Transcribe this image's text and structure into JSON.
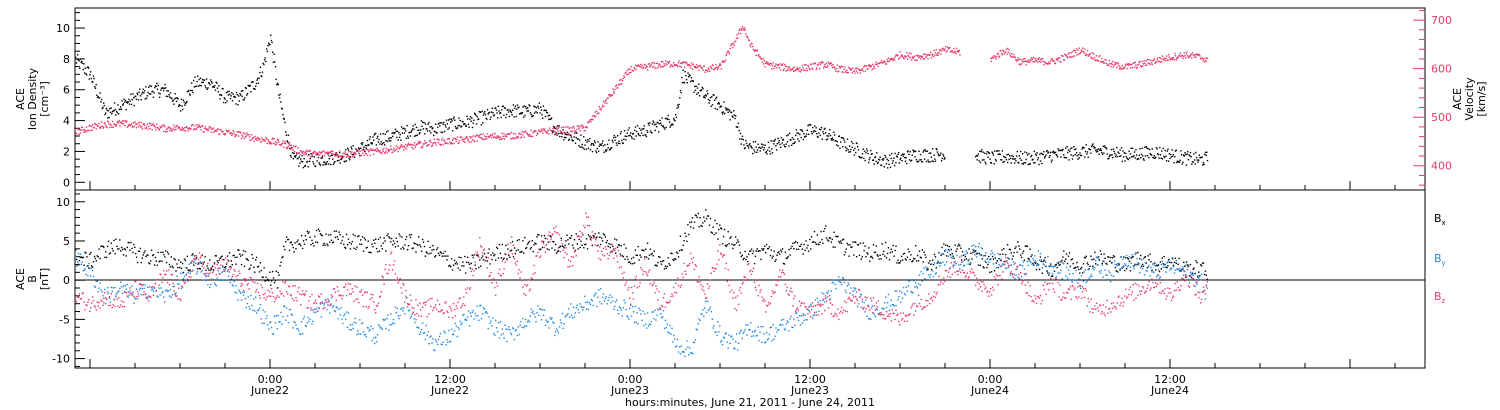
{
  "x_axis": {
    "title": "hours:minutes, June 21, 2011 - June 24, 2011",
    "ticks": [
      {
        "hour": 24,
        "time": "0:00",
        "date": "June22"
      },
      {
        "hour": 36,
        "time": "12:00",
        "date": "June22"
      },
      {
        "hour": 48,
        "time": "0:00",
        "date": "June23"
      },
      {
        "hour": 60,
        "time": "12:00",
        "date": "June23"
      },
      {
        "hour": 72,
        "time": "0:00",
        "date": "June24"
      },
      {
        "hour": 84,
        "time": "12:00",
        "date": "June24"
      }
    ]
  },
  "chart_data": [
    {
      "type": "scatter",
      "xlim": [
        11,
        101
      ],
      "left_axis": {
        "label_lines": [
          "ACE",
          "Ion Density",
          "[cm⁻³]"
        ],
        "ylim": [
          -0.5,
          11.3
        ],
        "ticks": [
          0,
          2,
          4,
          6,
          8,
          10
        ]
      },
      "right_axis": {
        "label_lines": [
          "ACE",
          "Velocity",
          "[km/s]"
        ],
        "ylim": [
          350,
          725
        ],
        "ticks": [
          400,
          500,
          600,
          700
        ]
      },
      "series": [
        {
          "key": "density",
          "axis": "left",
          "color": "#000000",
          "x": [
            11,
            12,
            13,
            14,
            15,
            16,
            17,
            18,
            19,
            20,
            21,
            22,
            23,
            23.5,
            24,
            24.5,
            25,
            25.5,
            26,
            27,
            28,
            29,
            30,
            31,
            32,
            33,
            34,
            35,
            36,
            37,
            38,
            39,
            40,
            41,
            42,
            43,
            44,
            44.5,
            45,
            46,
            47,
            48,
            49,
            50,
            51,
            51.5,
            52,
            53,
            54,
            55,
            55.5,
            56,
            57,
            58,
            59,
            60,
            61,
            62,
            63,
            64,
            65,
            66,
            67,
            68,
            69,
            70,
            71,
            72,
            73,
            74,
            75,
            76,
            77,
            78,
            79,
            80,
            81,
            82,
            83,
            84,
            85,
            86,
            86.5
          ],
          "y": [
            8,
            7,
            4.5,
            5,
            5.5,
            6,
            6,
            5,
            6.5,
            6.5,
            5.5,
            5.5,
            6.5,
            7.5,
            9.5,
            6,
            3.5,
            1.5,
            1.4,
            1.5,
            1.6,
            1.8,
            2.2,
            2.8,
            3.0,
            3.3,
            3.6,
            3.5,
            3.8,
            3.9,
            4.2,
            4.5,
            4.7,
            4.6,
            4.8,
            3.5,
            3.0,
            2.8,
            2.6,
            2.3,
            2.8,
            3.2,
            3.4,
            3.8,
            4.2,
            7,
            6.5,
            5.6,
            5,
            4.2,
            2.5,
            2.3,
            2.2,
            2.6,
            3.0,
            3.4,
            3.2,
            2.6,
            2.2,
            1.7,
            1.4,
            1.6,
            1.8,
            1.8,
            1.9,
            null,
            1.8,
            1.6,
            1.7,
            1.6,
            1.6,
            1.8,
            1.9,
            2.0,
            2.1,
            2.0,
            1.8,
            1.9,
            2.0,
            1.8,
            1.6,
            1.5,
            1.6
          ]
        },
        {
          "key": "velocity",
          "axis": "right",
          "color": "#e8396a",
          "x": [
            11,
            12,
            13,
            14,
            15,
            16,
            17,
            18,
            19,
            20,
            21,
            22,
            23,
            24,
            25,
            26,
            27,
            28,
            29,
            30,
            31,
            32,
            33,
            34,
            35,
            36,
            37,
            38,
            39,
            40,
            41,
            42,
            43,
            44,
            45,
            46,
            47,
            48,
            49,
            50,
            51,
            52,
            53,
            54,
            55,
            55.5,
            56,
            57,
            58,
            59,
            60,
            61,
            62,
            63,
            64,
            65,
            66,
            67,
            68,
            69,
            70,
            71,
            72,
            73,
            74,
            75,
            76,
            77,
            78,
            79,
            80,
            81,
            82,
            83,
            84,
            85,
            86,
            86.5
          ],
          "y": [
            470,
            480,
            487,
            488,
            485,
            483,
            478,
            480,
            480,
            475,
            470,
            465,
            458,
            452,
            445,
            430,
            425,
            428,
            425,
            428,
            430,
            435,
            440,
            445,
            450,
            452,
            455,
            460,
            462,
            463,
            466,
            470,
            475,
            475,
            480,
            520,
            560,
            600,
            605,
            610,
            612,
            608,
            600,
            605,
            660,
            690,
            650,
            610,
            605,
            600,
            605,
            610,
            600,
            595,
            605,
            615,
            630,
            625,
            630,
            640,
            635,
            null,
            620,
            640,
            615,
            618,
            615,
            625,
            640,
            625,
            610,
            605,
            610,
            618,
            625,
            630,
            625,
            618
          ]
        }
      ]
    },
    {
      "type": "scatter",
      "xlim": [
        11,
        101
      ],
      "left_axis": {
        "label_lines": [
          "ACE",
          "B",
          "[nT]"
        ],
        "ylim": [
          -11.2,
          11.5
        ],
        "ticks": [
          -10,
          -5,
          0,
          5,
          10
        ]
      },
      "zero_line": true,
      "series": [
        {
          "name": "Bx",
          "key": "bx",
          "color": "#000000",
          "x": [
            11,
            12,
            13,
            14,
            15,
            16,
            17,
            18,
            19,
            20,
            21,
            22,
            23,
            24,
            24.5,
            25,
            26,
            27,
            28,
            29,
            30,
            31,
            32,
            33,
            34,
            35,
            36,
            37,
            38,
            39,
            40,
            41,
            42,
            43,
            44,
            45,
            46,
            47,
            48,
            49,
            50,
            51,
            52,
            53,
            54,
            55,
            56,
            57,
            58,
            59,
            60,
            61,
            62,
            63,
            64,
            65,
            66,
            67,
            68,
            69,
            70,
            71,
            72,
            73,
            74,
            75,
            76,
            77,
            78,
            79,
            80,
            81,
            82,
            83,
            84,
            85,
            86,
            86.5
          ],
          "y": [
            3,
            2.5,
            4,
            4.5,
            3.5,
            3,
            2.8,
            2,
            2.5,
            2,
            2.5,
            3,
            2,
            0.5,
            0,
            4.5,
            5,
            5.5,
            5.5,
            5,
            4.8,
            4.5,
            5,
            5,
            4.5,
            3.5,
            2.5,
            2,
            2.5,
            3.5,
            4,
            4.5,
            5,
            4.5,
            5,
            5,
            5.5,
            4.5,
            3,
            4,
            2,
            3.5,
            7,
            8,
            6,
            4.5,
            3,
            4,
            3,
            4,
            5,
            6,
            4.5,
            4,
            3.5,
            4,
            3,
            3.5,
            2,
            4,
            3.5,
            3,
            2,
            3.5,
            4,
            2.5,
            1.5,
            3,
            2,
            3,
            2.5,
            2,
            3,
            2,
            2.5,
            1.5,
            1.5,
            1
          ]
        },
        {
          "name": "By",
          "key": "by",
          "color": "#1e88e5",
          "x": [
            11,
            12,
            13,
            14,
            15,
            16,
            17,
            18,
            19,
            20,
            21,
            22,
            23,
            24,
            25,
            26,
            27,
            28,
            29,
            30,
            31,
            32,
            33,
            34,
            35,
            36,
            37,
            38,
            39,
            40,
            41,
            42,
            43,
            44,
            45,
            46,
            47,
            48,
            49,
            50,
            51,
            52,
            53,
            54,
            55,
            56,
            57,
            58,
            59,
            60,
            61,
            62,
            63,
            64,
            65,
            66,
            67,
            68,
            69,
            70,
            71,
            72,
            73,
            74,
            75,
            76,
            77,
            78,
            79,
            80,
            81,
            82,
            83,
            84,
            85,
            86,
            86.5
          ],
          "y": [
            3,
            1,
            -2,
            -1,
            -2,
            -1,
            -2,
            0,
            2,
            0,
            1,
            -2,
            -3,
            -6,
            -4,
            -6,
            -4,
            -3,
            -5,
            -6,
            -7,
            -5,
            -3,
            -6,
            -8,
            -7,
            -5,
            -4,
            -6,
            -7,
            -5,
            -4,
            -6,
            -4,
            -3,
            -2,
            -3,
            -4,
            -5,
            -4,
            -8,
            -9,
            -3,
            -7,
            -8,
            -6,
            -7,
            -6,
            -5,
            -4,
            -2,
            0,
            -2,
            -4,
            -3,
            -2,
            0,
            1,
            3,
            2,
            4,
            3,
            2,
            1,
            3,
            2,
            1,
            0,
            2,
            1,
            3,
            2,
            1,
            2,
            1,
            0,
            -2
          ]
        },
        {
          "name": "Bz",
          "key": "bz",
          "color": "#e8396a",
          "x": [
            11,
            12,
            13,
            14,
            15,
            16,
            17,
            18,
            19,
            20,
            21,
            22,
            23,
            24,
            25,
            26,
            27,
            28,
            29,
            30,
            31,
            32,
            33,
            34,
            35,
            36,
            37,
            38,
            39,
            40,
            41,
            42,
            43,
            44,
            45,
            46,
            47,
            48,
            49,
            50,
            51,
            52,
            53,
            54,
            55,
            56,
            57,
            58,
            59,
            60,
            61,
            62,
            63,
            64,
            65,
            66,
            67,
            68,
            69,
            70,
            71,
            72,
            73,
            74,
            75,
            76,
            77,
            78,
            79,
            80,
            81,
            82,
            83,
            84,
            85,
            86,
            86.5
          ],
          "y": [
            -2,
            -3,
            -2,
            -3,
            -1,
            -2,
            1,
            -2,
            3,
            1,
            2,
            0,
            -1,
            -2,
            -1,
            -2,
            -3,
            -2,
            -1,
            -2,
            -3,
            3,
            -2,
            -4,
            -3,
            -4,
            -2,
            5,
            -1,
            5,
            -2,
            4,
            6,
            2,
            8,
            3,
            4,
            -2,
            2,
            -3,
            -1,
            3,
            -2,
            4,
            -3,
            2,
            -4,
            1,
            -3,
            -4,
            -3,
            -4,
            -2,
            -3,
            -4,
            -5,
            -3,
            -2,
            1,
            2,
            0,
            -1,
            2,
            1,
            -3,
            0,
            -2,
            -1,
            -4,
            -3,
            -2,
            -1,
            0,
            -2,
            1,
            -2,
            -1
          ]
        }
      ]
    }
  ]
}
